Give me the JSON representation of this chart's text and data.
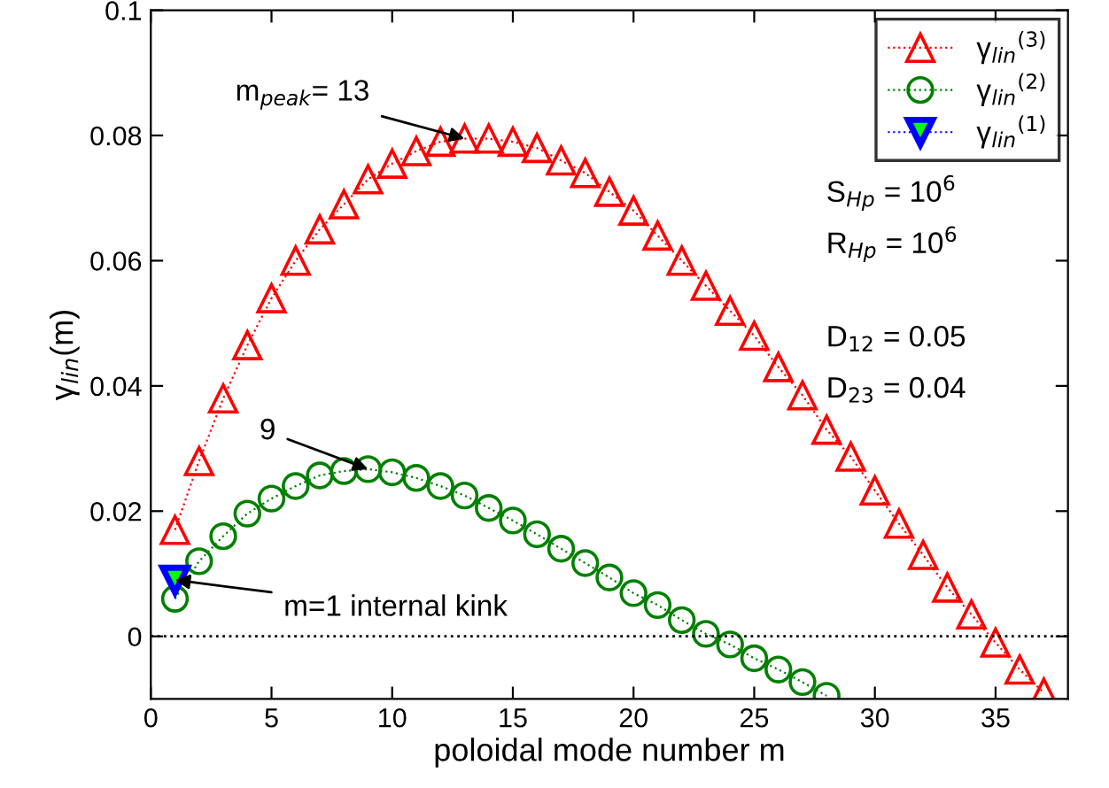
{
  "chart_data": {
    "type": "line",
    "xlabel": "poloidal mode number m",
    "ylabel": "γ$_{lin}$(m)",
    "xlim": [
      0,
      38
    ],
    "ylim": [
      -0.01,
      0.1
    ],
    "xticks": [
      0,
      5,
      10,
      15,
      20,
      25,
      30,
      35
    ],
    "yticks": [
      0,
      0.02,
      0.04,
      0.06,
      0.08,
      0.1
    ],
    "legend": "top right",
    "line_style": "dotted",
    "grid": false,
    "series": [
      {
        "name": "γ$_{lin}$$^{(3)}$",
        "color": "#ff0000",
        "marker": "triangle",
        "x": [
          1,
          2,
          3,
          4,
          5,
          6,
          7,
          8,
          9,
          10,
          11,
          12,
          13,
          14,
          15,
          16,
          17,
          18,
          19,
          20,
          21,
          22,
          23,
          24,
          25,
          26,
          27,
          28,
          29,
          30,
          31,
          32,
          33,
          34,
          35,
          36,
          37
        ],
        "values": [
          0.017,
          0.028,
          0.038,
          0.0465,
          0.054,
          0.06,
          0.065,
          0.069,
          0.073,
          0.0755,
          0.0775,
          0.079,
          0.0795,
          0.0795,
          0.079,
          0.078,
          0.076,
          0.074,
          0.071,
          0.068,
          0.064,
          0.06,
          0.056,
          0.052,
          0.048,
          0.043,
          0.0385,
          0.033,
          0.0287,
          0.0233,
          0.018,
          0.013,
          0.0078,
          0.0035,
          -0.001,
          -0.0053,
          -0.009
        ]
      },
      {
        "name": "γ$_{lin}$$^{(2)}$",
        "color": "#008000",
        "marker": "circle",
        "x": [
          1,
          2,
          3,
          4,
          5,
          6,
          7,
          8,
          9,
          10,
          11,
          12,
          13,
          14,
          15,
          16,
          17,
          18,
          19,
          20,
          21,
          22,
          23,
          24,
          25,
          26,
          27,
          28
        ],
        "values": [
          0.006,
          0.012,
          0.016,
          0.0196,
          0.022,
          0.024,
          0.0257,
          0.0264,
          0.0267,
          0.0262,
          0.0253,
          0.024,
          0.0225,
          0.0205,
          0.0185,
          0.0163,
          0.014,
          0.0117,
          0.0094,
          0.0069,
          0.005,
          0.0026,
          0.0004,
          -0.0013,
          -0.0035,
          -0.0053,
          -0.0073,
          -0.0095
        ]
      },
      {
        "name": "γ$_{lin}$$^{(1)}$",
        "color": "#0000ff",
        "marker": "triangle_down",
        "x": [
          1
        ],
        "values": [
          0.009
        ]
      }
    ],
    "ref_lines": [
      {
        "axis": "y",
        "value": 0,
        "color": "#000000",
        "line_style": "dotted"
      }
    ],
    "annotations": [
      {
        "text": "m$_{peak}$= 13",
        "x": 13,
        "y": 0.0795
      },
      {
        "text": "9",
        "x": 9,
        "y": 0.0267
      },
      {
        "text": "m=1 internal kink",
        "x": 1,
        "y": 0.009
      },
      "S$_{Hp}$ = 10$^{6}$",
      "R$_{Hp}$ = 10$^{6}$",
      "D$_{12}$ = 0.05",
      "D$_{23}$ = 0.04"
    ]
  }
}
